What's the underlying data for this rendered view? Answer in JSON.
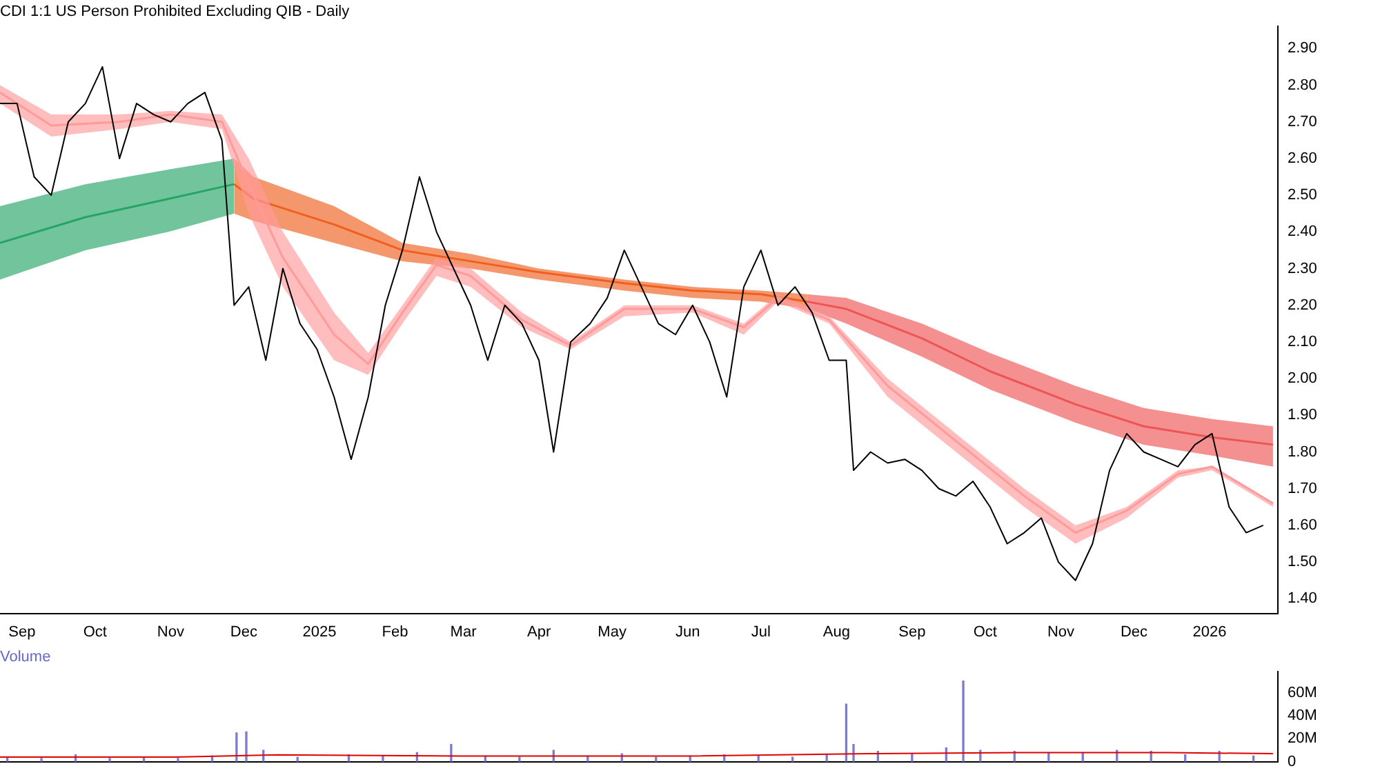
{
  "chart_data": [
    {
      "type": "line",
      "title": "CDI 1:1 US Person Prohibited Excluding QIB - Daily",
      "xlim": [
        "2024-08-23",
        "2026-01-29"
      ],
      "ylim": [
        1.36,
        2.96
      ],
      "xticks": [
        {
          "value": "2024-09-01",
          "label": "Sep"
        },
        {
          "value": "2024-10-01",
          "label": "Oct"
        },
        {
          "value": "2024-11-01",
          "label": "Nov"
        },
        {
          "value": "2024-12-01",
          "label": "Dec"
        },
        {
          "value": "2025-01-01",
          "label": "2025"
        },
        {
          "value": "2025-02-01",
          "label": "Feb"
        },
        {
          "value": "2025-03-01",
          "label": "Mar"
        },
        {
          "value": "2025-04-01",
          "label": "Apr"
        },
        {
          "value": "2025-05-01",
          "label": "May"
        },
        {
          "value": "2025-06-01",
          "label": "Jun"
        },
        {
          "value": "2025-07-01",
          "label": "Jul"
        },
        {
          "value": "2025-08-01",
          "label": "Aug"
        },
        {
          "value": "2025-09-01",
          "label": "Sep"
        },
        {
          "value": "2025-10-01",
          "label": "Oct"
        },
        {
          "value": "2025-11-01",
          "label": "Nov"
        },
        {
          "value": "2025-12-01",
          "label": "Dec"
        },
        {
          "value": "2026-01-01",
          "label": "2026"
        }
      ],
      "yticks": [
        {
          "value": 1.4,
          "label": "1.40"
        },
        {
          "value": 1.5,
          "label": "1.50"
        },
        {
          "value": 1.6,
          "label": "1.60"
        },
        {
          "value": 1.7,
          "label": "1.70"
        },
        {
          "value": 1.8,
          "label": "1.80"
        },
        {
          "value": 1.9,
          "label": "1.90"
        },
        {
          "value": 2.0,
          "label": "2.00"
        },
        {
          "value": 2.1,
          "label": "2.10"
        },
        {
          "value": 2.2,
          "label": "2.20"
        },
        {
          "value": 2.3,
          "label": "2.30"
        },
        {
          "value": 2.4,
          "label": "2.40"
        },
        {
          "value": 2.5,
          "label": "2.50"
        },
        {
          "value": 2.6,
          "label": "2.60"
        },
        {
          "value": 2.7,
          "label": "2.70"
        },
        {
          "value": 2.8,
          "label": "2.80"
        },
        {
          "value": 2.9,
          "label": "2.90"
        }
      ],
      "legend": false,
      "series": [
        {
          "type": "line",
          "color": "#25a565",
          "x": [
            "2024-08-23",
            "2024-09-27",
            "2024-10-31",
            "2024-11-27"
          ],
          "values": [
            2.37,
            2.44,
            2.49,
            2.53
          ],
          "lower": [
            2.27,
            2.35,
            2.4,
            2.45
          ],
          "upper": [
            2.47,
            2.53,
            2.57,
            2.6
          ]
        },
        {
          "type": "line",
          "color": "#f0601e",
          "x": [
            "2024-11-27",
            "2024-12-05",
            "2025-01-07",
            "2025-02-04",
            "2025-03-04",
            "2025-04-01",
            "2025-05-06",
            "2025-06-03",
            "2025-07-01",
            "2025-07-20"
          ],
          "values": [
            2.53,
            2.49,
            2.42,
            2.35,
            2.32,
            2.29,
            2.26,
            2.24,
            2.23,
            2.21
          ],
          "lower": [
            2.45,
            2.43,
            2.37,
            2.32,
            2.3,
            2.27,
            2.24,
            2.22,
            2.21,
            2.19
          ],
          "upper": [
            2.6,
            2.55,
            2.47,
            2.37,
            2.34,
            2.3,
            2.27,
            2.25,
            2.24,
            2.23
          ]
        },
        {
          "type": "line",
          "color": "#ee5555",
          "x": [
            "2025-07-20",
            "2025-08-05",
            "2025-09-05",
            "2025-10-03",
            "2025-11-07",
            "2025-12-05",
            "2026-01-02",
            "2026-01-27"
          ],
          "values": [
            2.21,
            2.19,
            2.11,
            2.02,
            1.93,
            1.87,
            1.84,
            1.82
          ],
          "lower": [
            2.19,
            2.15,
            2.06,
            1.97,
            1.88,
            1.82,
            1.79,
            1.76
          ],
          "upper": [
            2.23,
            2.22,
            2.15,
            2.07,
            1.98,
            1.92,
            1.89,
            1.87
          ]
        },
        {
          "type": "line",
          "color": "#ff9a9a",
          "x": [
            "2024-08-23",
            "2024-09-13",
            "2024-10-11",
            "2024-11-01",
            "2024-11-22",
            "2024-12-03",
            "2024-12-17",
            "2025-01-07",
            "2025-01-21",
            "2025-02-04",
            "2025-02-18",
            "2025-03-04",
            "2025-03-25",
            "2025-04-14",
            "2025-05-06",
            "2025-06-03",
            "2025-06-24",
            "2025-07-08",
            "2025-07-29",
            "2025-08-22",
            "2025-09-19",
            "2025-10-17",
            "2025-11-07",
            "2025-11-28",
            "2025-12-19",
            "2026-01-02",
            "2026-01-27"
          ],
          "values": [
            2.78,
            2.69,
            2.7,
            2.72,
            2.7,
            2.53,
            2.33,
            2.12,
            2.04,
            2.18,
            2.31,
            2.28,
            2.16,
            2.09,
            2.19,
            2.19,
            2.14,
            2.22,
            2.16,
            1.98,
            1.83,
            1.68,
            1.58,
            1.64,
            1.74,
            1.76,
            1.66
          ],
          "lower": [
            2.75,
            2.66,
            2.68,
            2.7,
            2.68,
            2.45,
            2.25,
            2.05,
            2.01,
            2.15,
            2.28,
            2.25,
            2.14,
            2.08,
            2.17,
            2.18,
            2.12,
            2.21,
            2.15,
            1.95,
            1.8,
            1.65,
            1.55,
            1.62,
            1.73,
            1.75,
            1.65
          ],
          "upper": [
            2.8,
            2.72,
            2.72,
            2.73,
            2.72,
            2.6,
            2.4,
            2.18,
            2.07,
            2.2,
            2.33,
            2.3,
            2.18,
            2.1,
            2.2,
            2.2,
            2.15,
            2.23,
            2.17,
            2.0,
            1.85,
            1.7,
            1.6,
            1.65,
            1.75,
            1.76,
            1.66
          ]
        },
        {
          "color": "#000000",
          "x": [
            "2024-08-23",
            "2024-08-30",
            "2024-09-06",
            "2024-09-13",
            "2024-09-20",
            "2024-09-27",
            "2024-10-04",
            "2024-10-11",
            "2024-10-18",
            "2024-10-25",
            "2024-11-01",
            "2024-11-08",
            "2024-11-15",
            "2024-11-22",
            "2024-11-27",
            "2024-12-03",
            "2024-12-10",
            "2024-12-17",
            "2024-12-24",
            "2024-12-31",
            "2025-01-07",
            "2025-01-14",
            "2025-01-21",
            "2025-01-28",
            "2025-02-04",
            "2025-02-11",
            "2025-02-18",
            "2025-02-25",
            "2025-03-04",
            "2025-03-11",
            "2025-03-18",
            "2025-03-25",
            "2025-04-01",
            "2025-04-07",
            "2025-04-14",
            "2025-04-22",
            "2025-04-29",
            "2025-05-06",
            "2025-05-13",
            "2025-05-20",
            "2025-05-27",
            "2025-06-03",
            "2025-06-10",
            "2025-06-17",
            "2025-06-24",
            "2025-07-01",
            "2025-07-08",
            "2025-07-15",
            "2025-07-22",
            "2025-07-29",
            "2025-08-05",
            "2025-08-08",
            "2025-08-15",
            "2025-08-22",
            "2025-08-29",
            "2025-09-05",
            "2025-09-12",
            "2025-09-19",
            "2025-09-26",
            "2025-10-03",
            "2025-10-10",
            "2025-10-17",
            "2025-10-24",
            "2025-10-31",
            "2025-11-07",
            "2025-11-14",
            "2025-11-21",
            "2025-11-28",
            "2025-12-05",
            "2025-12-12",
            "2025-12-19",
            "2025-12-26",
            "2026-01-02",
            "2026-01-09",
            "2026-01-16",
            "2026-01-23"
          ],
          "values": [
            2.75,
            2.75,
            2.55,
            2.5,
            2.7,
            2.75,
            2.85,
            2.6,
            2.75,
            2.72,
            2.7,
            2.75,
            2.78,
            2.65,
            2.2,
            2.25,
            2.05,
            2.3,
            2.15,
            2.08,
            1.95,
            1.78,
            1.95,
            2.2,
            2.35,
            2.55,
            2.4,
            2.3,
            2.2,
            2.05,
            2.2,
            2.15,
            2.05,
            1.8,
            2.1,
            2.15,
            2.22,
            2.35,
            2.25,
            2.15,
            2.12,
            2.2,
            2.1,
            1.95,
            2.25,
            2.35,
            2.2,
            2.25,
            2.18,
            2.05,
            2.05,
            1.75,
            1.8,
            1.77,
            1.78,
            1.75,
            1.7,
            1.68,
            1.72,
            1.65,
            1.55,
            1.58,
            1.62,
            1.5,
            1.45,
            1.55,
            1.75,
            1.85,
            1.8,
            1.78,
            1.76,
            1.82,
            1.85,
            1.65,
            1.58,
            1.6
          ]
        }
      ]
    },
    {
      "type": "bar",
      "title": "Volume",
      "xlim": [
        "2024-08-23",
        "2026-01-29"
      ],
      "ylim": [
        0,
        78000000
      ],
      "tick_labels": "y",
      "yticks": [
        {
          "value": 0,
          "label": "0"
        },
        {
          "value": 20000000,
          "label": "20M"
        },
        {
          "value": 40000000,
          "label": "40M"
        },
        {
          "value": 60000000,
          "label": "60M"
        }
      ],
      "legend": false,
      "series": [
        {
          "color": "#7b7bd6",
          "x": [
            "2024-08-26",
            "2024-09-09",
            "2024-09-23",
            "2024-10-07",
            "2024-10-21",
            "2024-11-04",
            "2024-11-18",
            "2024-11-28",
            "2024-12-02",
            "2024-12-09",
            "2024-12-23",
            "2025-01-13",
            "2025-01-27",
            "2025-02-10",
            "2025-02-24",
            "2025-03-10",
            "2025-03-24",
            "2025-04-07",
            "2025-04-21",
            "2025-05-05",
            "2025-05-19",
            "2025-06-02",
            "2025-06-16",
            "2025-06-30",
            "2025-07-14",
            "2025-07-28",
            "2025-08-05",
            "2025-08-08",
            "2025-08-18",
            "2025-09-01",
            "2025-09-15",
            "2025-09-22",
            "2025-09-29",
            "2025-10-13",
            "2025-10-27",
            "2025-11-10",
            "2025-11-24",
            "2025-12-08",
            "2025-12-22",
            "2026-01-05",
            "2026-01-19"
          ],
          "values": [
            4000000,
            3000000,
            6000000,
            3000000,
            4000000,
            3000000,
            5000000,
            25000000,
            26000000,
            10000000,
            4000000,
            6000000,
            5000000,
            8000000,
            15000000,
            5000000,
            4000000,
            10000000,
            5000000,
            7000000,
            4000000,
            5000000,
            6000000,
            5000000,
            4000000,
            6000000,
            50000000,
            15000000,
            9000000,
            7000000,
            12000000,
            70000000,
            10000000,
            9000000,
            8000000,
            8000000,
            10000000,
            9000000,
            6000000,
            9000000,
            5000000
          ]
        },
        {
          "type": "line",
          "color": "#e00000",
          "x": [
            "2024-08-23",
            "2024-11-01",
            "2024-12-15",
            "2025-03-01",
            "2025-06-01",
            "2025-08-15",
            "2025-10-15",
            "2025-12-15",
            "2026-01-27"
          ],
          "values": [
            4000000,
            4000000,
            6000000,
            5000000,
            5000000,
            7000000,
            8000000,
            8000000,
            7000000
          ]
        }
      ]
    }
  ]
}
